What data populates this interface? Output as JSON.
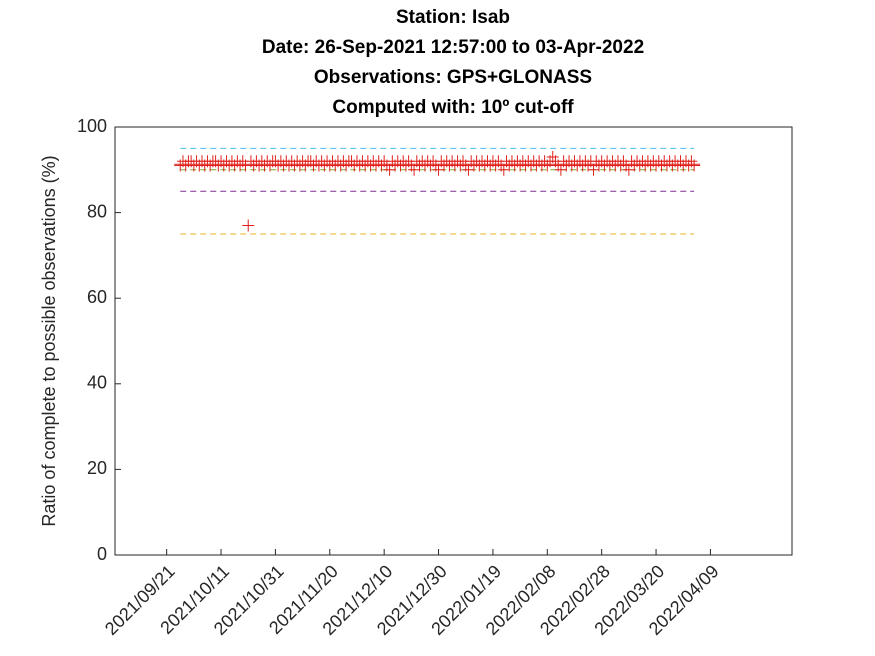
{
  "chart_data": {
    "type": "scatter",
    "title": [
      "Station: Isab",
      "Date: 26-Sep-2021 12:57:00 to 03-Apr-2022",
      "Observations: GPS+GLONASS",
      "Computed with: 10º cut-off"
    ],
    "y_label": "Ratio of complete to possible observations (%)",
    "xlim": [
      "2021-09-02",
      "2022-05-09"
    ],
    "xticks": [
      {
        "value": "2021-09-21",
        "label": "2021/09/21"
      },
      {
        "value": "2021-10-11",
        "label": "2021/10/11"
      },
      {
        "value": "2021-10-31",
        "label": "2021/10/31"
      },
      {
        "value": "2021-11-20",
        "label": "2021/11/20"
      },
      {
        "value": "2021-12-10",
        "label": "2021/12/10"
      },
      {
        "value": "2021-12-30",
        "label": "2021/12/30"
      },
      {
        "value": "2022-01-19",
        "label": "2022/01/19"
      },
      {
        "value": "2022-02-08",
        "label": "2022/02/08"
      },
      {
        "value": "2022-02-28",
        "label": "2022/02/28"
      },
      {
        "value": "2022-03-20",
        "label": "2022/03/20"
      },
      {
        "value": "2022-04-09",
        "label": "2022/04/09"
      }
    ],
    "ylim": [
      0,
      100
    ],
    "yticks": [
      0,
      20,
      40,
      60,
      80,
      100
    ],
    "grid": false,
    "color": "#e0201b",
    "mean_line": {
      "value": 91.3,
      "color": "#e0201b"
    },
    "reference_lines": [
      {
        "value": 95,
        "color": "#4dbeee"
      },
      {
        "value": 90,
        "color": "#77ac30"
      },
      {
        "value": 85,
        "color": "#7e2f8e"
      },
      {
        "value": 75,
        "color": "#edb120"
      }
    ],
    "x": [
      "2021-09-26",
      "2021-09-27",
      "2021-09-28",
      "2021-09-29",
      "2021-09-30",
      "2021-10-01",
      "2021-10-02",
      "2021-10-03",
      "2021-10-04",
      "2021-10-05",
      "2021-10-06",
      "2021-10-07",
      "2021-10-08",
      "2021-10-09",
      "2021-10-10",
      "2021-10-11",
      "2021-10-12",
      "2021-10-13",
      "2021-10-14",
      "2021-10-15",
      "2021-10-16",
      "2021-10-17",
      "2021-10-18",
      "2021-10-19",
      "2021-10-20",
      "2021-10-21",
      "2021-10-22",
      "2021-10-23",
      "2021-10-24",
      "2021-10-25",
      "2021-10-26",
      "2021-10-27",
      "2021-10-28",
      "2021-10-29",
      "2021-10-30",
      "2021-10-31",
      "2021-11-01",
      "2021-11-02",
      "2021-11-03",
      "2021-11-04",
      "2021-11-05",
      "2021-11-06",
      "2021-11-07",
      "2021-11-08",
      "2021-11-09",
      "2021-11-10",
      "2021-11-11",
      "2021-11-12",
      "2021-11-13",
      "2021-11-14",
      "2021-11-15",
      "2021-11-16",
      "2021-11-17",
      "2021-11-18",
      "2021-11-19",
      "2021-11-20",
      "2021-11-21",
      "2021-11-22",
      "2021-11-23",
      "2021-11-24",
      "2021-11-25",
      "2021-11-26",
      "2021-11-27",
      "2021-11-28",
      "2021-11-29",
      "2021-11-30",
      "2021-12-01",
      "2021-12-02",
      "2021-12-03",
      "2021-12-04",
      "2021-12-05",
      "2021-12-06",
      "2021-12-07",
      "2021-12-08",
      "2021-12-09",
      "2021-12-10",
      "2021-12-11",
      "2021-12-12",
      "2021-12-13",
      "2021-12-14",
      "2021-12-15",
      "2021-12-16",
      "2021-12-17",
      "2021-12-18",
      "2021-12-19",
      "2021-12-20",
      "2021-12-21",
      "2021-12-22",
      "2021-12-23",
      "2021-12-24",
      "2021-12-25",
      "2021-12-26",
      "2021-12-27",
      "2021-12-28",
      "2021-12-29",
      "2021-12-30",
      "2021-12-31",
      "2022-01-01",
      "2022-01-02",
      "2022-01-03",
      "2022-01-04",
      "2022-01-05",
      "2022-01-06",
      "2022-01-07",
      "2022-01-08",
      "2022-01-09",
      "2022-01-10",
      "2022-01-11",
      "2022-01-12",
      "2022-01-13",
      "2022-01-14",
      "2022-01-15",
      "2022-01-16",
      "2022-01-17",
      "2022-01-18",
      "2022-01-19",
      "2022-01-20",
      "2022-01-21",
      "2022-01-22",
      "2022-01-23",
      "2022-01-24",
      "2022-01-25",
      "2022-01-26",
      "2022-01-27",
      "2022-01-28",
      "2022-01-29",
      "2022-01-30",
      "2022-01-31",
      "2022-02-01",
      "2022-02-02",
      "2022-02-03",
      "2022-02-04",
      "2022-02-05",
      "2022-02-06",
      "2022-02-07",
      "2022-02-08",
      "2022-02-09",
      "2022-02-10",
      "2022-02-11",
      "2022-02-12",
      "2022-02-13",
      "2022-02-14",
      "2022-02-15",
      "2022-02-16",
      "2022-02-17",
      "2022-02-18",
      "2022-02-19",
      "2022-02-20",
      "2022-02-21",
      "2022-02-22",
      "2022-02-23",
      "2022-02-24",
      "2022-02-25",
      "2022-02-26",
      "2022-02-27",
      "2022-02-28",
      "2022-03-01",
      "2022-03-02",
      "2022-03-03",
      "2022-03-04",
      "2022-03-05",
      "2022-03-06",
      "2022-03-07",
      "2022-03-08",
      "2022-03-09",
      "2022-03-10",
      "2022-03-11",
      "2022-03-12",
      "2022-03-13",
      "2022-03-14",
      "2022-03-15",
      "2022-03-16",
      "2022-03-17",
      "2022-03-18",
      "2022-03-19",
      "2022-03-20",
      "2022-03-21",
      "2022-03-22",
      "2022-03-23",
      "2022-03-24",
      "2022-03-25",
      "2022-03-26",
      "2022-03-27",
      "2022-03-28",
      "2022-03-29",
      "2022-03-30",
      "2022-03-31",
      "2022-04-01",
      "2022-04-02",
      "2022-04-03"
    ],
    "values": [
      91,
      92,
      91,
      92,
      92,
      91,
      92,
      91,
      92,
      91,
      92,
      91,
      92,
      92,
      91,
      92,
      91,
      92,
      91,
      92,
      91,
      92,
      91,
      92,
      91,
      77,
      92,
      91,
      92,
      91,
      92,
      91,
      92,
      91,
      92,
      92,
      91,
      92,
      91,
      92,
      91,
      92,
      91,
      92,
      91,
      92,
      91,
      92,
      92,
      91,
      92,
      91,
      92,
      91,
      92,
      91,
      92,
      91,
      92,
      91,
      92,
      91,
      92,
      92,
      91,
      92,
      91,
      92,
      91,
      92,
      91,
      92,
      91,
      92,
      91,
      92,
      91,
      90,
      92,
      91,
      92,
      91,
      92,
      91,
      92,
      91,
      90,
      92,
      91,
      92,
      91,
      92,
      91,
      92,
      91,
      90,
      92,
      91,
      92,
      91,
      92,
      91,
      92,
      91,
      92,
      91,
      90,
      92,
      91,
      92,
      91,
      92,
      91,
      92,
      91,
      92,
      91,
      92,
      91,
      90,
      92,
      91,
      92,
      91,
      92,
      91,
      92,
      91,
      92,
      91,
      92,
      91,
      92,
      91,
      92,
      91,
      92,
      93,
      92,
      91,
      90,
      92,
      91,
      92,
      91,
      92,
      91,
      92,
      91,
      92,
      91,
      92,
      90,
      92,
      91,
      92,
      91,
      92,
      91,
      92,
      91,
      92,
      91,
      92,
      91,
      90,
      92,
      91,
      92,
      91,
      92,
      91,
      92,
      91,
      92,
      91,
      92,
      91,
      92,
      91,
      92,
      91,
      92,
      91,
      92,
      91,
      92,
      91,
      92,
      91
    ]
  }
}
